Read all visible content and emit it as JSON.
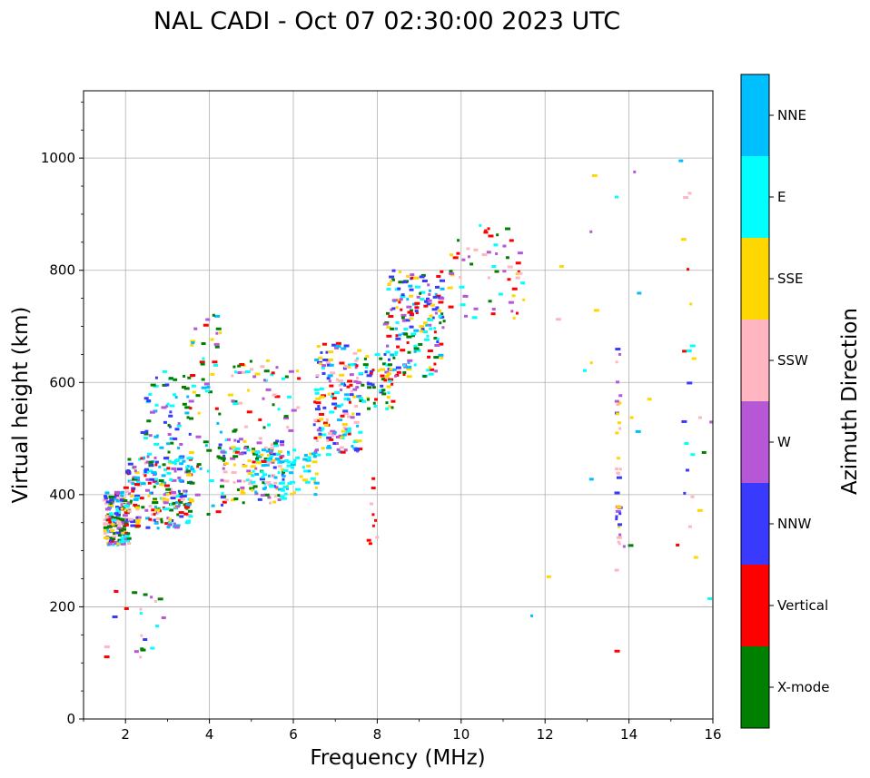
{
  "chart_data": {
    "type": "scatter",
    "title": "NAL CADI - Oct 07 02:30:00 2023 UTC",
    "xlabel": "Frequency (MHz)",
    "ylabel": "Virtual height (km)",
    "xlim": [
      1,
      16
    ],
    "ylim": [
      0,
      1120
    ],
    "xticks": [
      2,
      4,
      6,
      8,
      10,
      12,
      14,
      16
    ],
    "yticks": [
      0,
      200,
      400,
      600,
      800,
      1000
    ],
    "grid": true,
    "colorbar": {
      "label": "Azimuth Direction",
      "categories": [
        {
          "name": "X-mode",
          "color": "#008000"
        },
        {
          "name": "Vertical",
          "color": "#ff0000"
        },
        {
          "name": "NNW",
          "color": "#3a3aff"
        },
        {
          "name": "W",
          "color": "#b657d6"
        },
        {
          "name": "SSW",
          "color": "#ffb6c1"
        },
        {
          "name": "SSE",
          "color": "#ffd700"
        },
        {
          "name": "E",
          "color": "#00ffff"
        },
        {
          "name": "NNE",
          "color": "#00bfff"
        }
      ]
    },
    "clusters": [
      {
        "x": [
          1.5,
          2.1
        ],
        "y": [
          310,
          405
        ],
        "n": 190,
        "colors": [
          "NNW",
          "Vertical",
          "SSE",
          "SSW",
          "E",
          "X-mode",
          "NNE",
          "W"
        ]
      },
      {
        "x": [
          2.0,
          3.6
        ],
        "y": [
          340,
          470
        ],
        "n": 230,
        "colors": [
          "X-mode",
          "NNW",
          "SSE",
          "SSW",
          "E",
          "NNE",
          "W",
          "Vertical"
        ]
      },
      {
        "x": [
          2.4,
          3.6
        ],
        "y": [
          400,
          620
        ],
        "n": 80,
        "colors": [
          "X-mode",
          "NNW",
          "NNE",
          "W",
          "E"
        ]
      },
      {
        "x": [
          3.5,
          4.4
        ],
        "y": [
          360,
          720
        ],
        "n": 60,
        "colors": [
          "X-mode",
          "E",
          "SSE",
          "W",
          "NNE",
          "Vertical"
        ]
      },
      {
        "x": [
          4.2,
          5.8
        ],
        "y": [
          380,
          500
        ],
        "n": 110,
        "colors": [
          "E",
          "SSE",
          "W",
          "SSW",
          "NNW",
          "X-mode"
        ]
      },
      {
        "x": [
          5.0,
          6.6
        ],
        "y": [
          400,
          480
        ],
        "n": 90,
        "colors": [
          "E",
          "E",
          "NNE",
          "SSE"
        ]
      },
      {
        "x": [
          4.5,
          6.2
        ],
        "y": [
          450,
          640
        ],
        "n": 70,
        "colors": [
          "SSW",
          "W",
          "Vertical",
          "X-mode",
          "SSE",
          "E"
        ]
      },
      {
        "x": [
          6.5,
          7.6
        ],
        "y": [
          470,
          670
        ],
        "n": 170,
        "colors": [
          "NNW",
          "E",
          "SSE",
          "W",
          "SSW",
          "NNE",
          "Vertical"
        ]
      },
      {
        "x": [
          7.6,
          8.4
        ],
        "y": [
          550,
          650
        ],
        "n": 60,
        "colors": [
          "NNW",
          "E",
          "SSE",
          "Vertical",
          "X-mode"
        ]
      },
      {
        "x": [
          8.2,
          9.6
        ],
        "y": [
          610,
          800
        ],
        "n": 180,
        "colors": [
          "NNW",
          "X-mode",
          "Vertical",
          "E",
          "NNE",
          "W",
          "SSE"
        ]
      },
      {
        "x": [
          9.7,
          11.6
        ],
        "y": [
          710,
          880
        ],
        "n": 60,
        "colors": [
          "Vertical",
          "X-mode",
          "W",
          "E",
          "SSW",
          "SSE"
        ]
      },
      {
        "x": [
          1.5,
          3.0
        ],
        "y": [
          90,
          240
        ],
        "n": 22,
        "colors": [
          "Vertical",
          "W",
          "E",
          "SSE",
          "SSW",
          "NNW",
          "X-mode"
        ]
      },
      {
        "x": [
          7.8,
          8.0
        ],
        "y": [
          310,
          430
        ],
        "n": 9,
        "colors": [
          "Vertical",
          "SSW"
        ]
      },
      {
        "x": [
          13.7,
          13.8
        ],
        "y": [
          265,
          660
        ],
        "n": 34,
        "colors": [
          "W",
          "SSE",
          "W",
          "NNW",
          "SSW"
        ]
      },
      {
        "x": [
          15.3,
          15.7
        ],
        "y": [
          340,
          960
        ],
        "n": 18,
        "colors": [
          "E",
          "SSE",
          "SSW",
          "Vertical",
          "NNW",
          "W"
        ]
      },
      {
        "x": [
          11.6,
          16.0
        ],
        "y": [
          85,
          1010
        ],
        "n": 26,
        "colors": [
          "SSE",
          "W",
          "Vertical",
          "SSW",
          "NNE",
          "X-mode",
          "E"
        ]
      }
    ]
  }
}
